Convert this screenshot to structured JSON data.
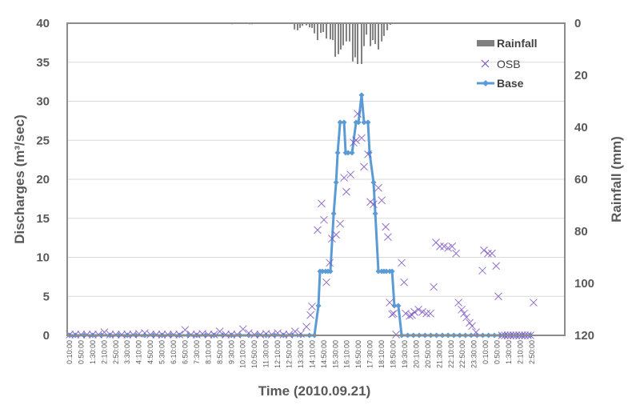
{
  "chart_data": {
    "type": "line",
    "xlabel": "Time (2010.09.21)",
    "ylabel": "Discharges (m³/sec)",
    "y2label": "Rainfall (mm)",
    "ylim": [
      0,
      40
    ],
    "y2lim": [
      0,
      120
    ],
    "y2_inverted": true,
    "yticks": [
      0,
      5,
      10,
      15,
      20,
      25,
      30,
      35,
      40
    ],
    "y2ticks": [
      0,
      20,
      40,
      60,
      80,
      100,
      120
    ],
    "x_unit": "hours since 0:00 (2010.09.21)",
    "xlim_hours": [
      0.0,
      28.9
    ],
    "xtick_labels": [
      "0:10:00",
      "0:50:00",
      "1:30:00",
      "2:10:00",
      "2:50:00",
      "3:30:00",
      "4:10:00",
      "4:50:00",
      "5:30:00",
      "6:10:00",
      "6:50:00",
      "7:30:00",
      "8:10:00",
      "8:50:00",
      "9:30:00",
      "10:10:00",
      "10:50:00",
      "11:30:00",
      "12:10:00",
      "12:50:00",
      "13:30:00",
      "14:10:00",
      "14:50:00",
      "15:30:00",
      "16:10:00",
      "16:50:00",
      "17:30:00",
      "18:10:00",
      "18:50:00",
      "19:30:00",
      "20:10:00",
      "20:50:00",
      "21:30:00",
      "22:10:00",
      "22:50:00",
      "23:30:00",
      "0:10:00",
      "0:50:00",
      "1:30:00",
      "2:10:00",
      "2:50:00"
    ],
    "xtick_start_hours": 0.1667,
    "xtick_step_hours": 0.6667,
    "grid": true,
    "legend": {
      "placement": "top-right",
      "entries": [
        "Rainfall",
        "OSB",
        "Base"
      ]
    },
    "colors": {
      "Rainfall": "#7f7f7f",
      "OSB": "#7e57c2",
      "Base": "#5b9bd5",
      "axis": "#8c8c8c",
      "grid": "#d9d9d9"
    },
    "series": [
      {
        "name": "Rainfall",
        "type": "bar",
        "axis": "right",
        "points": [
          [
            9.54,
            0.4
          ],
          [
            10.55,
            0.4
          ],
          [
            10.69,
            0.4
          ],
          [
            10.83,
            0.2
          ],
          [
            13.0,
            0.2
          ],
          [
            13.14,
            2.4
          ],
          [
            13.32,
            2.7
          ],
          [
            13.46,
            1.8
          ],
          [
            13.6,
            1.0
          ],
          [
            13.83,
            0.8
          ],
          [
            14.01,
            1.6
          ],
          [
            14.15,
            1.8
          ],
          [
            14.29,
            3.9
          ],
          [
            14.47,
            6.5
          ],
          [
            14.66,
            3.7
          ],
          [
            14.8,
            3.4
          ],
          [
            14.98,
            5.9
          ],
          [
            15.21,
            6.2
          ],
          [
            15.35,
            6.5
          ],
          [
            15.49,
            12.9
          ],
          [
            15.67,
            11.9
          ],
          [
            15.81,
            10.1
          ],
          [
            15.95,
            8.5
          ],
          [
            16.13,
            7.0
          ],
          [
            16.32,
            7.0
          ],
          [
            16.5,
            14.7
          ],
          [
            16.64,
            13.1
          ],
          [
            16.78,
            15.7
          ],
          [
            17.01,
            15.7
          ],
          [
            17.15,
            8.8
          ],
          [
            17.29,
            4.4
          ],
          [
            17.52,
            8.8
          ],
          [
            17.66,
            6.5
          ],
          [
            17.8,
            8.0
          ],
          [
            17.98,
            10.1
          ],
          [
            18.17,
            7.0
          ],
          [
            18.3,
            4.9
          ],
          [
            18.49,
            2.7
          ],
          [
            18.67,
            0.6
          ],
          [
            18.86,
            0.3
          ],
          [
            19.0,
            0.2
          ]
        ]
      },
      {
        "name": "OSB",
        "type": "scatter",
        "axis": "left",
        "points": [
          [
            0.17,
            0.1
          ],
          [
            0.5,
            0.1
          ],
          [
            0.83,
            0.1
          ],
          [
            1.17,
            0.1
          ],
          [
            1.5,
            0.1
          ],
          [
            1.83,
            0.1
          ],
          [
            2.17,
            0.4
          ],
          [
            2.5,
            0.1
          ],
          [
            2.83,
            0.1
          ],
          [
            3.17,
            0.1
          ],
          [
            3.5,
            0.1
          ],
          [
            3.83,
            0.1
          ],
          [
            4.17,
            0.2
          ],
          [
            4.5,
            0.3
          ],
          [
            4.83,
            0.1
          ],
          [
            5.17,
            0.1
          ],
          [
            5.5,
            0.1
          ],
          [
            5.83,
            0.1
          ],
          [
            6.17,
            0.1
          ],
          [
            6.5,
            0.1
          ],
          [
            6.83,
            0.7
          ],
          [
            7.17,
            0.1
          ],
          [
            7.5,
            0.1
          ],
          [
            7.83,
            0.2
          ],
          [
            8.17,
            0.1
          ],
          [
            8.5,
            0.1
          ],
          [
            8.83,
            0.5
          ],
          [
            9.17,
            0.1
          ],
          [
            9.5,
            0.1
          ],
          [
            9.83,
            0.1
          ],
          [
            10.17,
            0.8
          ],
          [
            10.5,
            0.3
          ],
          [
            10.83,
            0.1
          ],
          [
            11.17,
            0.1
          ],
          [
            11.5,
            0.2
          ],
          [
            11.83,
            0.1
          ],
          [
            12.17,
            0.3
          ],
          [
            12.5,
            0.1
          ],
          [
            12.83,
            0.1
          ],
          [
            13.17,
            0.5
          ],
          [
            13.5,
            0.2
          ],
          [
            13.83,
            1.1
          ],
          [
            14.06,
            2.6
          ],
          [
            14.15,
            3.7
          ],
          [
            14.47,
            13.5
          ],
          [
            14.7,
            16.9
          ],
          [
            14.84,
            14.8
          ],
          [
            14.98,
            6.8
          ],
          [
            15.17,
            9.3
          ],
          [
            15.3,
            12.4
          ],
          [
            15.54,
            12.9
          ],
          [
            15.77,
            14.3
          ],
          [
            16.0,
            20.2
          ],
          [
            16.13,
            18.4
          ],
          [
            16.37,
            20.6
          ],
          [
            16.55,
            24.7
          ],
          [
            16.69,
            25.0
          ],
          [
            16.78,
            28.4
          ],
          [
            17.01,
            25.3
          ],
          [
            17.15,
            21.6
          ],
          [
            17.38,
            23.2
          ],
          [
            17.52,
            17.1
          ],
          [
            17.7,
            16.8
          ],
          [
            17.98,
            18.9
          ],
          [
            18.17,
            17.3
          ],
          [
            18.4,
            13.9
          ],
          [
            18.53,
            12.6
          ],
          [
            18.63,
            4.2
          ],
          [
            18.77,
            2.7
          ],
          [
            18.86,
            2.8
          ],
          [
            19.0,
            0.1
          ],
          [
            19.32,
            9.3
          ],
          [
            19.46,
            6.8
          ],
          [
            19.55,
            2.8
          ],
          [
            19.78,
            2.5
          ],
          [
            19.92,
            2.6
          ],
          [
            20.06,
            3.0
          ],
          [
            20.29,
            3.3
          ],
          [
            20.52,
            3.0
          ],
          [
            20.75,
            2.8
          ],
          [
            20.98,
            2.8
          ],
          [
            21.17,
            6.2
          ],
          [
            21.3,
            11.9
          ],
          [
            21.53,
            11.4
          ],
          [
            21.77,
            11.4
          ],
          [
            22.0,
            11.2
          ],
          [
            22.23,
            11.4
          ],
          [
            22.46,
            10.5
          ],
          [
            22.6,
            4.2
          ],
          [
            22.78,
            3.3
          ],
          [
            22.92,
            2.8
          ],
          [
            23.06,
            2.3
          ],
          [
            23.24,
            1.6
          ],
          [
            23.38,
            1.2
          ],
          [
            23.61,
            0.4
          ],
          [
            23.98,
            8.3
          ],
          [
            24.07,
            10.9
          ],
          [
            24.3,
            10.5
          ],
          [
            24.53,
            10.5
          ],
          [
            24.77,
            8.9
          ],
          [
            24.9,
            5.0
          ],
          [
            25.1,
            0.0
          ],
          [
            25.27,
            0.0
          ],
          [
            25.43,
            0.0
          ],
          [
            25.6,
            0.0
          ],
          [
            25.77,
            0.0
          ],
          [
            25.93,
            0.0
          ],
          [
            26.1,
            0.0
          ],
          [
            26.27,
            0.0
          ],
          [
            26.43,
            0.0
          ],
          [
            26.6,
            0.0
          ],
          [
            26.75,
            0.0
          ],
          [
            26.93,
            4.2
          ]
        ]
      },
      {
        "name": "Base",
        "type": "line",
        "axis": "left",
        "points": [
          [
            0.17,
            0
          ],
          [
            0.5,
            0
          ],
          [
            1.0,
            0
          ],
          [
            1.5,
            0
          ],
          [
            2.0,
            0
          ],
          [
            2.5,
            0
          ],
          [
            3.0,
            0
          ],
          [
            3.5,
            0
          ],
          [
            4.0,
            0
          ],
          [
            4.5,
            0
          ],
          [
            5.0,
            0
          ],
          [
            5.5,
            0
          ],
          [
            6.0,
            0
          ],
          [
            6.5,
            0
          ],
          [
            7.0,
            0
          ],
          [
            7.5,
            0
          ],
          [
            8.0,
            0
          ],
          [
            8.5,
            0
          ],
          [
            9.0,
            0
          ],
          [
            9.5,
            0
          ],
          [
            10.0,
            0
          ],
          [
            10.5,
            0
          ],
          [
            11.0,
            0
          ],
          [
            11.5,
            0
          ],
          [
            12.0,
            0
          ],
          [
            12.5,
            0
          ],
          [
            13.0,
            0
          ],
          [
            13.5,
            0
          ],
          [
            14.0,
            0
          ],
          [
            14.29,
            0
          ],
          [
            14.52,
            3.8
          ],
          [
            14.61,
            8.2
          ],
          [
            14.75,
            8.2
          ],
          [
            14.93,
            8.2
          ],
          [
            15.07,
            8.2
          ],
          [
            15.21,
            8.2
          ],
          [
            15.4,
            15.6
          ],
          [
            15.54,
            19.6
          ],
          [
            15.63,
            23.4
          ],
          [
            15.77,
            27.3
          ],
          [
            16.0,
            27.3
          ],
          [
            16.09,
            23.4
          ],
          [
            16.23,
            23.4
          ],
          [
            16.46,
            23.4
          ],
          [
            16.69,
            27.3
          ],
          [
            16.83,
            27.3
          ],
          [
            17.01,
            30.8
          ],
          [
            17.15,
            27.3
          ],
          [
            17.38,
            27.3
          ],
          [
            17.47,
            23.4
          ],
          [
            17.7,
            19.6
          ],
          [
            17.8,
            15.6
          ],
          [
            17.98,
            8.2
          ],
          [
            18.17,
            8.2
          ],
          [
            18.3,
            8.2
          ],
          [
            18.44,
            8.2
          ],
          [
            18.63,
            8.2
          ],
          [
            18.77,
            8.2
          ],
          [
            18.9,
            3.8
          ],
          [
            19.13,
            3.8
          ],
          [
            19.32,
            0
          ],
          [
            19.67,
            0
          ],
          [
            20.0,
            0
          ],
          [
            20.33,
            0
          ],
          [
            20.67,
            0
          ],
          [
            21.0,
            0
          ],
          [
            21.33,
            0
          ],
          [
            21.67,
            0
          ],
          [
            22.0,
            0
          ],
          [
            22.33,
            0
          ],
          [
            22.67,
            0
          ],
          [
            23.0,
            0
          ],
          [
            23.33,
            0
          ],
          [
            23.67,
            0
          ],
          [
            24.0,
            0
          ],
          [
            24.33,
            0
          ],
          [
            24.67,
            0
          ],
          [
            25.0,
            0
          ],
          [
            25.33,
            0
          ],
          [
            25.67,
            0
          ],
          [
            26.0,
            0
          ],
          [
            26.33,
            0
          ],
          [
            26.75,
            0
          ]
        ]
      }
    ]
  }
}
